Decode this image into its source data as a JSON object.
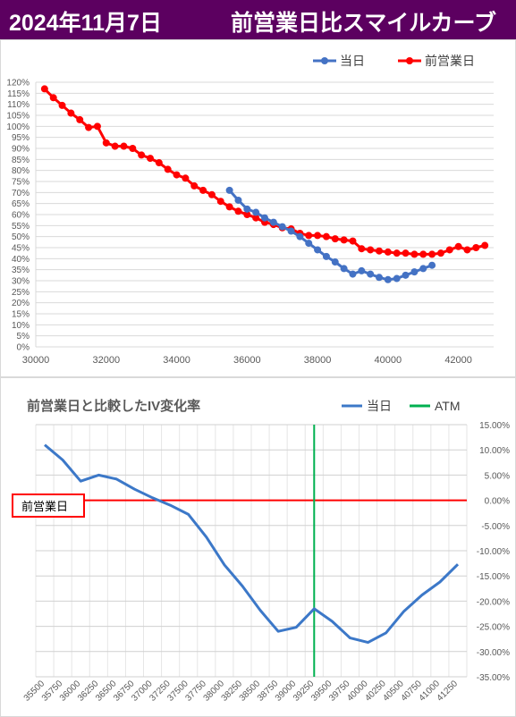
{
  "header": {
    "date": "2024年11月7日",
    "title": "前営業日比スマイルカーブ"
  },
  "chart_data": [
    {
      "type": "line",
      "title": "",
      "xlim": [
        30000,
        43000
      ],
      "ylim": [
        0,
        120
      ],
      "x_ticks": [
        "30000",
        "32000",
        "34000",
        "36000",
        "38000",
        "40000",
        "42000"
      ],
      "y_ticks": [
        "0%",
        "5%",
        "10%",
        "15%",
        "20%",
        "25%",
        "30%",
        "35%",
        "40%",
        "45%",
        "50%",
        "55%",
        "60%",
        "65%",
        "70%",
        "75%",
        "80%",
        "85%",
        "90%",
        "95%",
        "100%",
        "105%",
        "110%",
        "115%",
        "120%"
      ],
      "legend": [
        "当日",
        "前営業日"
      ],
      "legend_position": "top-right",
      "series": [
        {
          "name": "当日",
          "color": "#4472c4",
          "x": [
            35500,
            35750,
            36000,
            36250,
            36500,
            36750,
            37000,
            37250,
            37500,
            37750,
            38000,
            38250,
            38500,
            38750,
            39000,
            39250,
            39500,
            39750,
            40000,
            40250,
            40500,
            40750,
            41000,
            41250
          ],
          "y": [
            71,
            66.5,
            62.5,
            61,
            58.5,
            56.5,
            54.5,
            52.5,
            50,
            47,
            44,
            41,
            38.5,
            35.5,
            33,
            34.5,
            33,
            31.5,
            30.5,
            31,
            32.5,
            34,
            35.5,
            37
          ]
        },
        {
          "name": "前営業日",
          "color": "#ff0000",
          "x": [
            30250,
            30500,
            30750,
            31000,
            31250,
            31500,
            31750,
            32000,
            32250,
            32500,
            32750,
            33000,
            33250,
            33500,
            33750,
            34000,
            34250,
            34500,
            34750,
            35000,
            35250,
            35500,
            35750,
            36000,
            36250,
            36500,
            36750,
            37000,
            37250,
            37500,
            37750,
            38000,
            38250,
            38500,
            38750,
            39000,
            39250,
            39500,
            39750,
            40000,
            40250,
            40500,
            40750,
            41000,
            41250,
            41500,
            41750,
            42000,
            42250,
            42500,
            42750
          ],
          "y": [
            117,
            113,
            109.5,
            106,
            103,
            99.5,
            100,
            92.5,
            91,
            91,
            90,
            87,
            85.5,
            83.5,
            80.5,
            78,
            76.5,
            73,
            71,
            69,
            66,
            63.5,
            61.5,
            60,
            58.5,
            56.5,
            55.5,
            54,
            53.5,
            51.5,
            50.5,
            50.5,
            50,
            49,
            48.5,
            48,
            44.5,
            44,
            43.5,
            43,
            42.5,
            42.5,
            42,
            42,
            42,
            42.5,
            44,
            45.5,
            44,
            45,
            46
          ]
        }
      ]
    },
    {
      "type": "line",
      "title": "前営業日と比較したIV変化率",
      "ylim": [
        -35,
        15
      ],
      "y_ticks": [
        "15.00%",
        "10.00%",
        "5.00%",
        "0.00%",
        "-5.00%",
        "-10.00%",
        "-15.00%",
        "-20.00%",
        "-25.00%",
        "-30.00%",
        "-35.00%"
      ],
      "categories": [
        "35500",
        "35750",
        "36000",
        "36250",
        "36500",
        "36750",
        "37000",
        "37250",
        "37500",
        "37750",
        "38000",
        "38250",
        "38500",
        "38750",
        "39000",
        "39250",
        "39500",
        "39750",
        "40000",
        "40250",
        "40500",
        "40750",
        "41000",
        "41250"
      ],
      "legend": [
        "当日",
        "ATM"
      ],
      "legend_position": "top-right",
      "series": [
        {
          "name": "当日",
          "color": "#3c78c8",
          "values": [
            11,
            8,
            3.8,
            5,
            4.2,
            2.2,
            0.5,
            -1,
            -2.8,
            -7.3,
            -12.8,
            -17,
            -21.8,
            -26,
            -25.2,
            -21.5,
            -24,
            -27.3,
            -28.2,
            -26.3,
            -22,
            -18.8,
            -16.2,
            -12.7
          ]
        }
      ],
      "atm_category": "39250",
      "atm_color": "#00b050",
      "baseline_label": "前営業日",
      "baseline_color": "#ff0000"
    }
  ]
}
